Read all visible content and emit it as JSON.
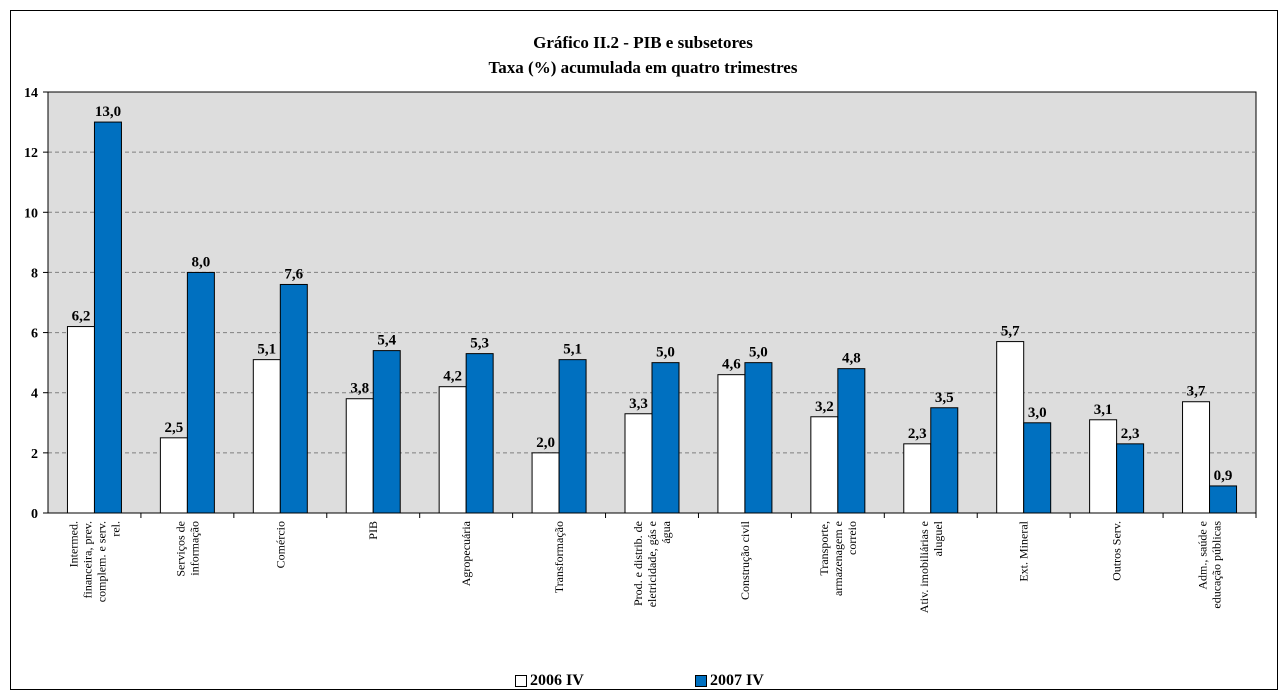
{
  "chart_data": {
    "type": "bar",
    "title": "Gráfico II.2 - PIB  e subsetores",
    "subtitle": "Taxa (%) acumulada em quatro trimestres",
    "categories": [
      "Intermed. financeira, prev. complem. e serv. rel.",
      "Serviços de informação",
      "Comércio",
      "PIB",
      "Agropecuária",
      "Transformação",
      "Prod. e distrib. de eletricidade, gás e água",
      "Construção civil",
      "Transporte, armazenagem e correio",
      "Ativ. imobiliárias e aluguel",
      "Ext. Mineral",
      "Outros Serv.",
      "Adm., saúde e educação públicas"
    ],
    "series": [
      {
        "name": "2006 IV",
        "color": "#ffffff",
        "values": [
          6.2,
          2.5,
          5.1,
          3.8,
          4.2,
          2.0,
          3.3,
          4.6,
          3.2,
          2.3,
          5.7,
          3.1,
          3.7
        ],
        "labels": [
          "6,2",
          "2,5",
          "5,1",
          "3,8",
          "4,2",
          "2,0",
          "3,3",
          "4,6",
          "3,2",
          "2,3",
          "5,7",
          "3,1",
          "3,7"
        ]
      },
      {
        "name": "2007 IV",
        "color": "#0070c0",
        "values": [
          13.0,
          8.0,
          7.6,
          5.4,
          5.3,
          5.1,
          5.0,
          5.0,
          4.8,
          3.5,
          3.0,
          2.3,
          0.9
        ],
        "labels": [
          "13,0",
          "8,0",
          "7,6",
          "5,4",
          "5,3",
          "5,1",
          "5,0",
          "5,0",
          "4,8",
          "3,5",
          "3,0",
          "2,3",
          "0,9"
        ]
      }
    ],
    "ylim": [
      0,
      14
    ],
    "yticks": [
      0,
      2,
      4,
      6,
      8,
      10,
      12,
      14
    ],
    "grid": true,
    "plot_background": "#dddddd",
    "legend_position": "bottom"
  }
}
